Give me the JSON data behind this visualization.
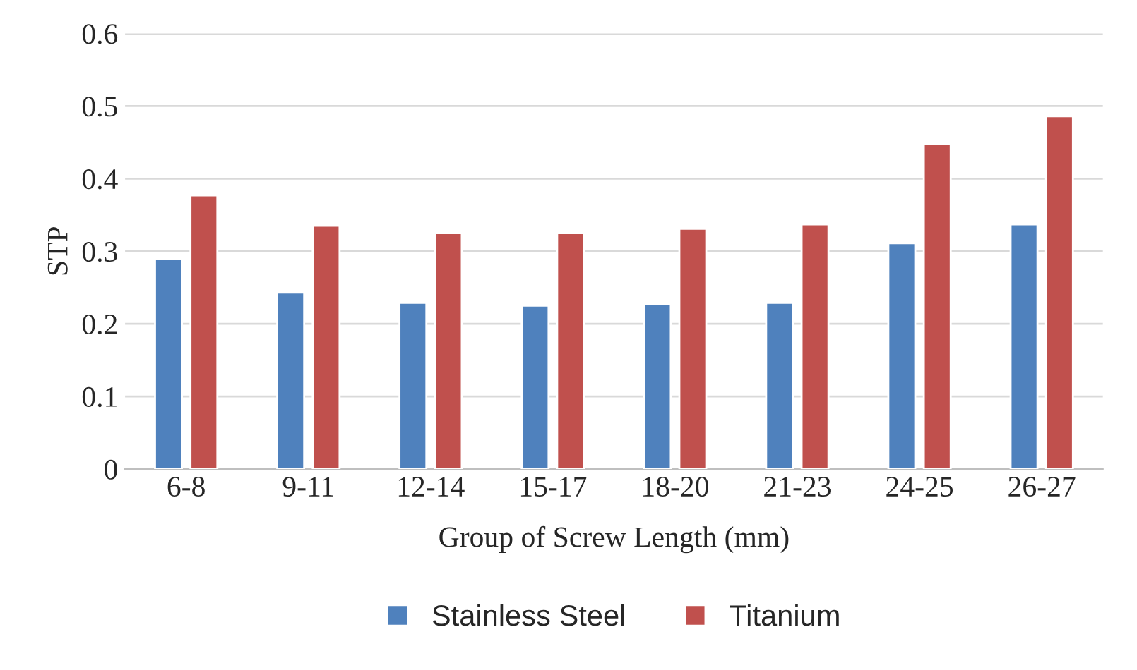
{
  "chart_data": {
    "type": "bar",
    "xlabel": "Group of Screw Length (mm)",
    "ylabel": "STP",
    "categories": [
      "6-8",
      "9-11",
      "12-14",
      "15-17",
      "18-20",
      "21-23",
      "24-25",
      "26-27"
    ],
    "series": [
      {
        "name": "Stainless Steel",
        "color": "#4f81bd",
        "values": [
          0.289,
          0.243,
          0.229,
          0.225,
          0.227,
          0.229,
          0.311,
          0.337
        ]
      },
      {
        "name": "Titanium",
        "color": "#c0504d",
        "values": [
          0.377,
          0.335,
          0.325,
          0.325,
          0.331,
          0.337,
          0.448,
          0.486
        ]
      }
    ],
    "ylim": [
      0,
      0.6
    ],
    "yticks": [
      0,
      0.1,
      0.2,
      0.3,
      0.4,
      0.5,
      0.6
    ],
    "grid": "y",
    "legend": "bottom"
  }
}
